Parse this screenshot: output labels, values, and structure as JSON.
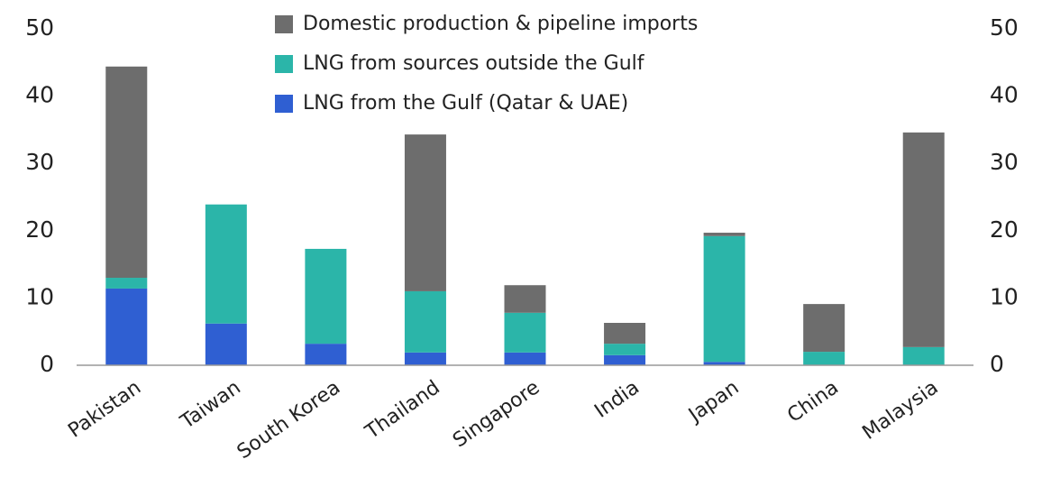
{
  "chart_data": {
    "type": "stacked_bar",
    "categories": [
      "Pakistan",
      "Taiwan",
      "South Korea",
      "Thailand",
      "Singapore",
      "India",
      "Japan",
      "China",
      "Malaysia"
    ],
    "series": [
      {
        "name": "Domestic production & pipeline imports",
        "color": "#6d6d6d",
        "values": [
          31.4,
          0,
          0,
          23.3,
          4.1,
          3.1,
          0.5,
          7.1,
          31.9
        ]
      },
      {
        "name": "LNG from sources outside the Gulf",
        "color": "#2bb5a9",
        "values": [
          1.6,
          17.7,
          14.1,
          9.1,
          5.9,
          1.7,
          18.7,
          2.0,
          2.7
        ]
      },
      {
        "name": "LNG from the Gulf (Qatar & UAE)",
        "color": "#2f5fd2",
        "values": [
          11.4,
          6.2,
          3.2,
          1.9,
          1.9,
          1.5,
          0.5,
          0,
          0
        ]
      }
    ],
    "ylim": [
      0,
      50
    ],
    "yticks": [
      0,
      10,
      20,
      30,
      40,
      50
    ],
    "y2lim": [
      0,
      50
    ],
    "y2ticks": [
      0,
      10,
      20,
      30,
      40,
      50
    ],
    "grid": false
  }
}
